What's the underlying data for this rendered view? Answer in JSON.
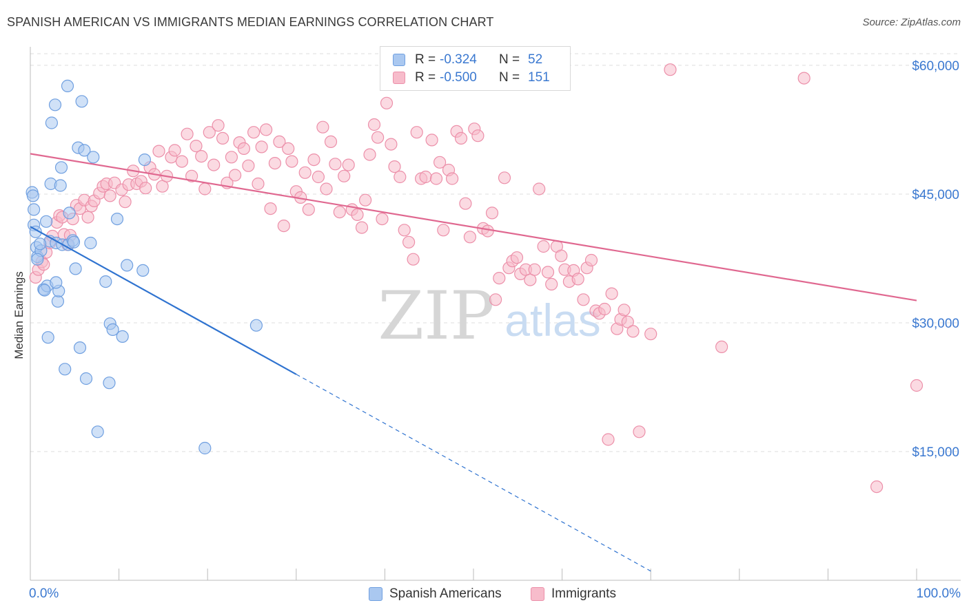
{
  "title": "SPANISH AMERICAN VS IMMIGRANTS MEDIAN EARNINGS CORRELATION CHART",
  "source": "Source: ZipAtlas.com",
  "watermark": {
    "zip": "ZIP",
    "atlas": "atlas"
  },
  "legend_top": {
    "rows": [
      {
        "r_label": "R =",
        "r_value": "-0.324",
        "n_label": "N =",
        "n_value": "52",
        "color": "#aac8f0"
      },
      {
        "r_label": "R =",
        "r_value": "-0.500",
        "n_label": "N =",
        "n_value": "151",
        "color": "#f7bccb"
      }
    ]
  },
  "legend_bottom": {
    "items": [
      {
        "label": "Spanish Americans",
        "color": "#aac8f0"
      },
      {
        "label": "Immigrants",
        "color": "#f7bccb"
      }
    ]
  },
  "colors": {
    "blue_fill": "#aac8f0",
    "blue_stroke": "#6f9fe0",
    "blue_line": "#2f73d0",
    "pink_fill": "#f7bccb",
    "pink_stroke": "#ec8fa9",
    "pink_line": "#e06890",
    "tick_label": "#3a78d0",
    "grid": "#dcdcdc"
  },
  "chart_data": {
    "type": "scatter",
    "title": "SPANISH AMERICAN VS IMMIGRANTS MEDIAN EARNINGS CORRELATION CHART",
    "xlabel": "",
    "ylabel": "Median Earnings",
    "x_unit": "%",
    "xlim": [
      0,
      105
    ],
    "ylim": [
      0,
      62000
    ],
    "x_tick_labels": [
      "0.0%",
      "100.0%"
    ],
    "y_ticks": [
      15000,
      30000,
      45000,
      60000
    ],
    "y_tick_labels": [
      "$15,000",
      "$30,000",
      "$45,000",
      "$60,000"
    ],
    "grid": "horizontal dashed",
    "legend_position": "top-center",
    "series": [
      {
        "name": "Spanish Americans",
        "r": -0.324,
        "n": 52,
        "trend": {
          "x0": 0,
          "y0": 41200,
          "x1": 30,
          "y1": 24000,
          "dashed_to_x": 70
        },
        "points": [
          [
            0.2,
            45200
          ],
          [
            0.3,
            44800
          ],
          [
            0.4,
            43200
          ],
          [
            0.4,
            41400
          ],
          [
            0.6,
            40600
          ],
          [
            0.7,
            38800
          ],
          [
            0.8,
            37700
          ],
          [
            1.2,
            38400
          ],
          [
            1.5,
            33900
          ],
          [
            1.8,
            41800
          ],
          [
            1.9,
            34300
          ],
          [
            2.0,
            28300
          ],
          [
            2.2,
            39500
          ],
          [
            2.3,
            46200
          ],
          [
            2.4,
            53300
          ],
          [
            2.8,
            55400
          ],
          [
            2.9,
            39300
          ],
          [
            3.1,
            32500
          ],
          [
            3.2,
            33700
          ],
          [
            2.9,
            34700
          ],
          [
            3.5,
            48100
          ],
          [
            3.6,
            39100
          ],
          [
            3.9,
            24600
          ],
          [
            4.2,
            57600
          ],
          [
            4.3,
            39100
          ],
          [
            4.4,
            42800
          ],
          [
            4.8,
            39600
          ],
          [
            5.1,
            36300
          ],
          [
            5.4,
            50400
          ],
          [
            5.6,
            27100
          ],
          [
            5.8,
            55800
          ],
          [
            6.1,
            50100
          ],
          [
            6.3,
            23500
          ],
          [
            6.8,
            39300
          ],
          [
            7.1,
            49300
          ],
          [
            7.6,
            17300
          ],
          [
            8.5,
            34800
          ],
          [
            8.9,
            23000
          ],
          [
            9.0,
            29900
          ],
          [
            9.3,
            29200
          ],
          [
            9.8,
            42100
          ],
          [
            10.4,
            28400
          ],
          [
            10.9,
            36700
          ],
          [
            12.7,
            36100
          ],
          [
            12.9,
            49000
          ],
          [
            19.7,
            15400
          ],
          [
            25.5,
            29700
          ],
          [
            0.8,
            37400
          ],
          [
            1.1,
            39200
          ],
          [
            1.6,
            33800
          ],
          [
            4.9,
            39400
          ],
          [
            3.4,
            46000
          ]
        ]
      },
      {
        "name": "Immigrants",
        "r": -0.5,
        "n": 151,
        "trend": {
          "x0": 0,
          "y0": 49700,
          "x1": 100,
          "y1": 32600
        },
        "points": [
          [
            0.6,
            35300
          ],
          [
            0.9,
            36200
          ],
          [
            1.3,
            37100
          ],
          [
            1.8,
            38200
          ],
          [
            2.2,
            39300
          ],
          [
            2.5,
            40100
          ],
          [
            3.0,
            41700
          ],
          [
            3.3,
            42500
          ],
          [
            3.6,
            42300
          ],
          [
            3.8,
            40300
          ],
          [
            4.2,
            39100
          ],
          [
            4.5,
            40200
          ],
          [
            4.8,
            42100
          ],
          [
            5.2,
            43700
          ],
          [
            5.6,
            43300
          ],
          [
            6.1,
            44300
          ],
          [
            6.5,
            42300
          ],
          [
            6.9,
            43600
          ],
          [
            7.2,
            44200
          ],
          [
            7.8,
            45100
          ],
          [
            8.2,
            45900
          ],
          [
            8.6,
            46200
          ],
          [
            9.0,
            44800
          ],
          [
            9.5,
            46300
          ],
          [
            10.3,
            45500
          ],
          [
            10.7,
            44100
          ],
          [
            11.1,
            46100
          ],
          [
            11.6,
            47700
          ],
          [
            12.0,
            46200
          ],
          [
            12.5,
            46500
          ],
          [
            13.0,
            45700
          ],
          [
            13.5,
            48100
          ],
          [
            14.0,
            47300
          ],
          [
            14.5,
            50000
          ],
          [
            14.9,
            45900
          ],
          [
            15.4,
            47100
          ],
          [
            15.9,
            49300
          ],
          [
            16.3,
            50100
          ],
          [
            17.1,
            48800
          ],
          [
            17.7,
            52000
          ],
          [
            18.2,
            47100
          ],
          [
            18.7,
            50600
          ],
          [
            19.3,
            49400
          ],
          [
            19.7,
            45600
          ],
          [
            20.2,
            52200
          ],
          [
            20.7,
            48400
          ],
          [
            21.2,
            53000
          ],
          [
            21.7,
            51500
          ],
          [
            22.2,
            46300
          ],
          [
            22.7,
            49300
          ],
          [
            23.1,
            47200
          ],
          [
            23.6,
            51000
          ],
          [
            24.1,
            50300
          ],
          [
            24.6,
            48300
          ],
          [
            25.2,
            52200
          ],
          [
            25.7,
            46200
          ],
          [
            26.1,
            50500
          ],
          [
            26.6,
            52500
          ],
          [
            27.1,
            43300
          ],
          [
            27.6,
            48600
          ],
          [
            28.1,
            51100
          ],
          [
            28.6,
            41300
          ],
          [
            29.1,
            50300
          ],
          [
            29.5,
            48800
          ],
          [
            30.0,
            45300
          ],
          [
            30.5,
            44600
          ],
          [
            31.0,
            47500
          ],
          [
            31.4,
            43200
          ],
          [
            32.0,
            49000
          ],
          [
            32.5,
            47000
          ],
          [
            33.0,
            52800
          ],
          [
            33.4,
            45600
          ],
          [
            33.9,
            51100
          ],
          [
            34.4,
            48500
          ],
          [
            34.9,
            42900
          ],
          [
            35.4,
            47100
          ],
          [
            35.9,
            48400
          ],
          [
            36.3,
            43200
          ],
          [
            36.9,
            42600
          ],
          [
            37.4,
            41100
          ],
          [
            37.8,
            44300
          ],
          [
            38.3,
            49600
          ],
          [
            38.8,
            53100
          ],
          [
            39.2,
            51600
          ],
          [
            39.7,
            42100
          ],
          [
            40.2,
            55600
          ],
          [
            40.7,
            50800
          ],
          [
            41.1,
            48200
          ],
          [
            41.7,
            47000
          ],
          [
            42.2,
            40800
          ],
          [
            42.7,
            39400
          ],
          [
            43.2,
            37400
          ],
          [
            43.6,
            52200
          ],
          [
            44.1,
            46800
          ],
          [
            44.6,
            47000
          ],
          [
            45.3,
            51300
          ],
          [
            45.8,
            46800
          ],
          [
            46.2,
            48700
          ],
          [
            46.6,
            40800
          ],
          [
            47.2,
            47800
          ],
          [
            47.6,
            46800
          ],
          [
            48.1,
            52300
          ],
          [
            48.6,
            51500
          ],
          [
            49.1,
            43900
          ],
          [
            49.6,
            40000
          ],
          [
            50.1,
            52600
          ],
          [
            50.5,
            51800
          ],
          [
            51.1,
            41000
          ],
          [
            51.6,
            40700
          ],
          [
            52.1,
            42800
          ],
          [
            52.5,
            32700
          ],
          [
            52.9,
            35200
          ],
          [
            53.5,
            46900
          ],
          [
            54.0,
            36400
          ],
          [
            54.4,
            37200
          ],
          [
            54.9,
            37600
          ],
          [
            55.3,
            35700
          ],
          [
            55.9,
            36200
          ],
          [
            56.4,
            35000
          ],
          [
            56.9,
            36200
          ],
          [
            57.4,
            45600
          ],
          [
            57.9,
            38900
          ],
          [
            58.4,
            35900
          ],
          [
            58.8,
            34500
          ],
          [
            59.4,
            38900
          ],
          [
            59.9,
            37800
          ],
          [
            60.3,
            36200
          ],
          [
            60.8,
            34800
          ],
          [
            61.3,
            36100
          ],
          [
            61.8,
            35100
          ],
          [
            62.4,
            32700
          ],
          [
            62.8,
            36400
          ],
          [
            63.3,
            37300
          ],
          [
            63.8,
            31400
          ],
          [
            64.2,
            31100
          ],
          [
            64.8,
            31600
          ],
          [
            65.2,
            16400
          ],
          [
            65.6,
            33400
          ],
          [
            66.2,
            29300
          ],
          [
            66.6,
            30400
          ],
          [
            67.0,
            31500
          ],
          [
            67.4,
            30100
          ],
          [
            68.0,
            29000
          ],
          [
            68.7,
            17300
          ],
          [
            70.0,
            28700
          ],
          [
            72.2,
            59500
          ],
          [
            78.0,
            27200
          ],
          [
            87.3,
            58500
          ],
          [
            95.5,
            10900
          ],
          [
            100.0,
            22700
          ],
          [
            1.5,
            36800
          ]
        ]
      }
    ]
  }
}
